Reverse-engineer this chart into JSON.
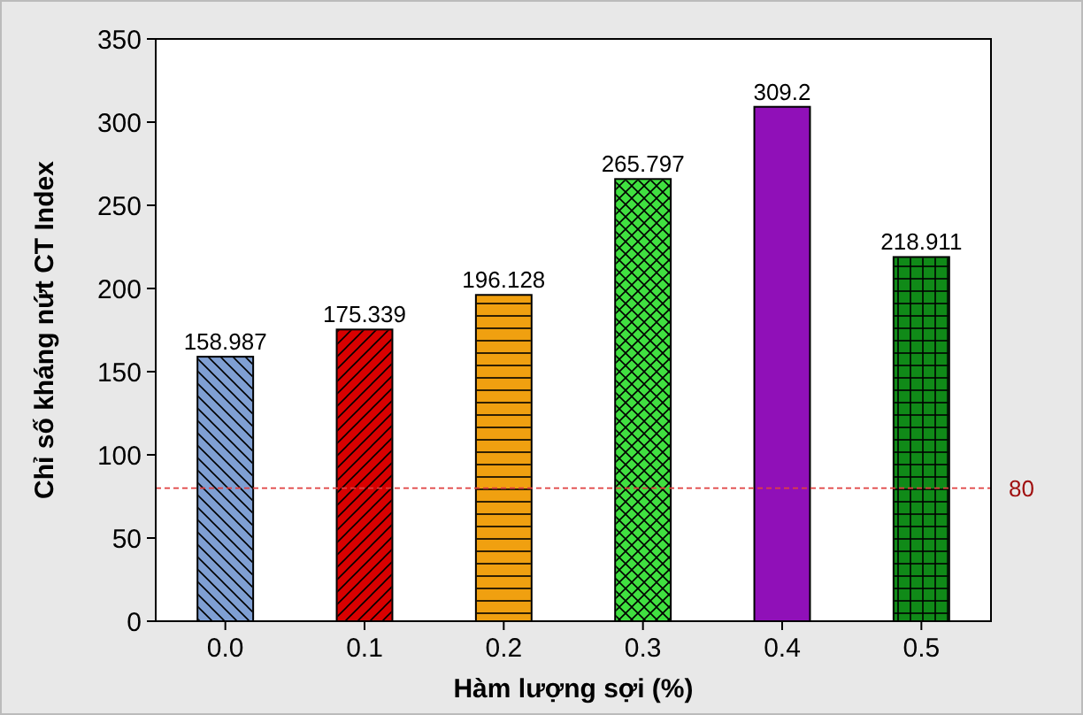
{
  "chart_data": {
    "type": "bar",
    "xlabel": "Hàm lượng sợi (%)",
    "ylabel": "Chỉ số kháng nứt CT Index",
    "categories": [
      "0.0",
      "0.1",
      "0.2",
      "0.3",
      "0.4",
      "0.5"
    ],
    "values": [
      158.987,
      175.339,
      196.128,
      265.797,
      309.2,
      218.911
    ],
    "colors": [
      "#7f9fd3",
      "#d80000",
      "#f0a010",
      "#40e040",
      "#9010b8",
      "#108a18"
    ],
    "ylim": [
      0,
      350
    ],
    "yticks": [
      0,
      50,
      100,
      150,
      200,
      250,
      300,
      350
    ],
    "grid": false,
    "data_labels": true,
    "ref_lines": [
      {
        "axis": "y",
        "value": 80,
        "label": "80",
        "color": "#e04040",
        "line_style": "dashed"
      }
    ]
  }
}
